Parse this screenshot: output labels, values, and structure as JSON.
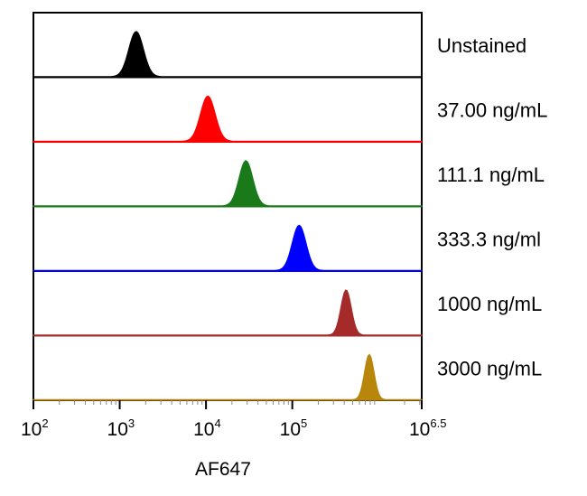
{
  "chart_data": {
    "type": "area",
    "title": "",
    "xlabel": "AF647",
    "ylabel": "",
    "xscale": "log",
    "xlim": [
      100,
      3162278
    ],
    "xticks": [
      {
        "base": "10",
        "exp": "2"
      },
      {
        "base": "10",
        "exp": "3"
      },
      {
        "base": "10",
        "exp": "4"
      },
      {
        "base": "10",
        "exp": "5"
      },
      {
        "base": "10",
        "exp": "6.5"
      }
    ],
    "series": [
      {
        "name": "Unstained",
        "color": "#000000",
        "peak": 1550,
        "width": 0.085
      },
      {
        "name": "37.00 ng/mL",
        "color": "#ff0000",
        "peak": 10500,
        "width": 0.085
      },
      {
        "name": "111.1 ng/mL",
        "color": "#1a7a1a",
        "peak": 29000,
        "width": 0.08
      },
      {
        "name": "333.3 ng/ml",
        "color": "#0000ff",
        "peak": 120000,
        "width": 0.08
      },
      {
        "name": "1000 ng/mL",
        "color": "#a52a2a",
        "peak": 420000,
        "width": 0.06
      },
      {
        "name": "3000 ng/mL",
        "color": "#b8860b",
        "peak": 780000,
        "width": 0.055
      }
    ],
    "grid": false,
    "legend": "right"
  }
}
